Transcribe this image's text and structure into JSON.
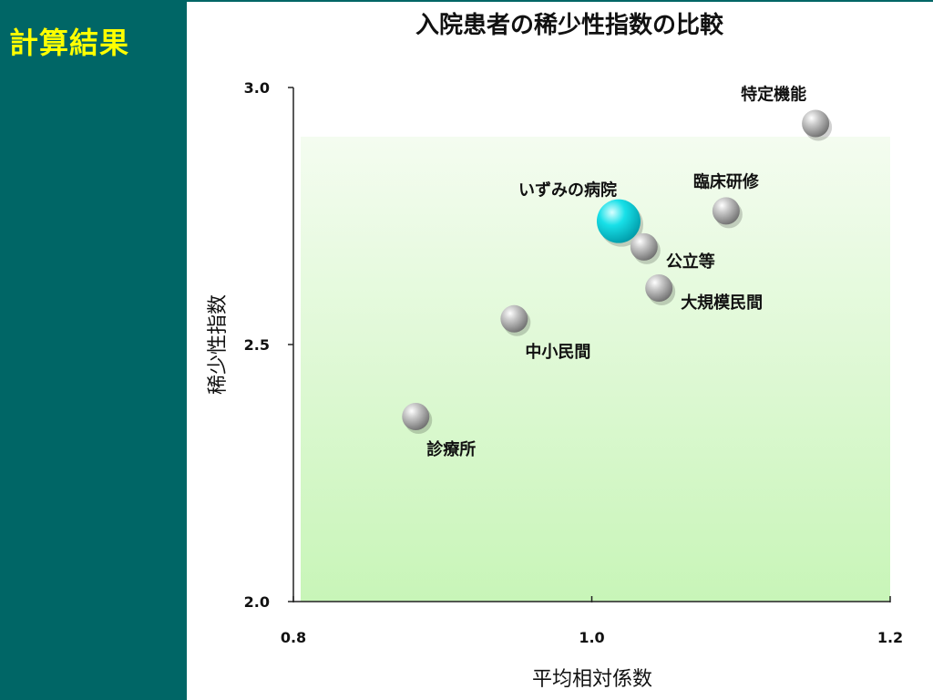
{
  "sidebar": {
    "title": "計算結果"
  },
  "colors": {
    "sidebar_bg": "#006666",
    "sidebar_text": "#ffff00",
    "highlight_point": "#00d8e0",
    "other_points": "#9a9a9a",
    "plot_gradient_top": "#f4fcf0",
    "plot_gradient_bottom": "#c8f5b8"
  },
  "chart_data": {
    "type": "scatter",
    "title": "入院患者の稀少性指数の比較",
    "xlabel": "平均相対係数",
    "ylabel": "稀少性指数",
    "xlim": [
      0.8,
      1.2
    ],
    "ylim": [
      2.0,
      3.0
    ],
    "xticks": [
      "0.8",
      "1.0",
      "1.2"
    ],
    "yticks": [
      "2.0",
      "2.5",
      "3.0"
    ],
    "grid": false,
    "points": [
      {
        "label": "特定機能",
        "x": 1.15,
        "y": 2.93,
        "highlight": false,
        "label_pos": "above-left"
      },
      {
        "label": "臨床研修",
        "x": 1.09,
        "y": 2.76,
        "highlight": false,
        "label_pos": "above"
      },
      {
        "label": "いずみの病院",
        "x": 1.018,
        "y": 2.74,
        "highlight": true,
        "label_pos": "above-left"
      },
      {
        "label": "公立等",
        "x": 1.035,
        "y": 2.69,
        "highlight": false,
        "label_pos": "right-below"
      },
      {
        "label": "大規模民間",
        "x": 1.045,
        "y": 2.61,
        "highlight": false,
        "label_pos": "right-below"
      },
      {
        "label": "中小民間",
        "x": 0.948,
        "y": 2.55,
        "highlight": false,
        "label_pos": "below-right"
      },
      {
        "label": "診療所",
        "x": 0.882,
        "y": 2.36,
        "highlight": false,
        "label_pos": "below-right"
      }
    ]
  }
}
